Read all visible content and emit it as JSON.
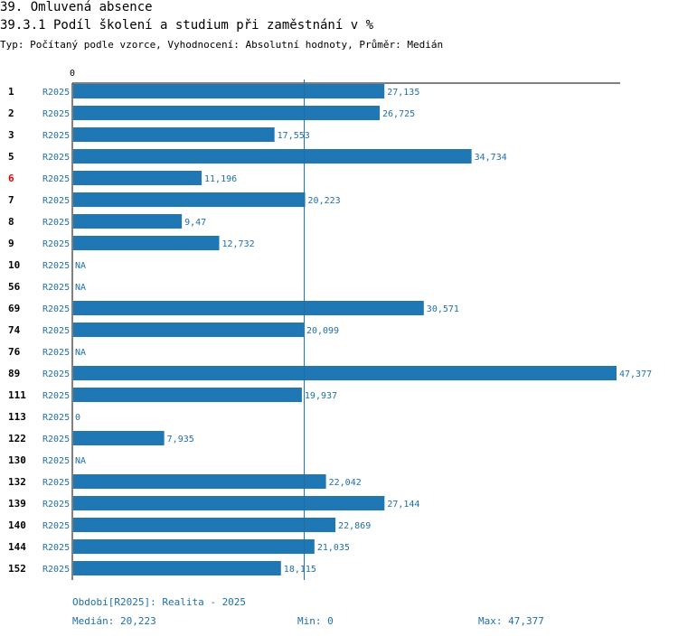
{
  "header": {
    "title": "39. Omluvená absence",
    "subtitle": "39.3.1 Podíl školení a studium při zaměstnání v %",
    "type_line": "Typ: Počítaný podle vzorce, Vyhodnocení: Absolutní hodnoty, Průměr: Medián"
  },
  "colors": {
    "bar": "#1f77b4",
    "text_blue": "#1f6fa8",
    "highlight": "#e00000",
    "axis": "#000000"
  },
  "chart_data": {
    "type": "bar",
    "orientation": "horizontal",
    "axis_zero_label": "0",
    "xlim": [
      0,
      47.377
    ],
    "median": 20.223,
    "highlight_category": "6",
    "period_label": "R2025",
    "categories": [
      "1",
      "2",
      "3",
      "5",
      "6",
      "7",
      "8",
      "9",
      "10",
      "56",
      "69",
      "74",
      "76",
      "89",
      "111",
      "113",
      "122",
      "130",
      "132",
      "139",
      "140",
      "144",
      "152"
    ],
    "values": [
      27.135,
      26.725,
      17.553,
      34.734,
      11.196,
      20.223,
      9.47,
      12.732,
      null,
      null,
      30.571,
      20.099,
      null,
      47.377,
      19.937,
      0,
      7.935,
      null,
      22.042,
      27.144,
      22.869,
      21.035,
      18.115
    ],
    "value_labels": [
      "27,135",
      "26,725",
      "17,553",
      "34,734",
      "11,196",
      "20,223",
      "9,47",
      "12,732",
      "NA",
      "NA",
      "30,571",
      "20,099",
      "NA",
      "47,377",
      "19,937",
      "0",
      "7,935",
      "NA",
      "22,042",
      "27,144",
      "22,869",
      "21,035",
      "18,115"
    ]
  },
  "footer": {
    "period": "Období[R2025]: Realita - 2025",
    "median": "Medián: 20,223",
    "min": "Min: 0",
    "max": "Max: 47,377"
  }
}
